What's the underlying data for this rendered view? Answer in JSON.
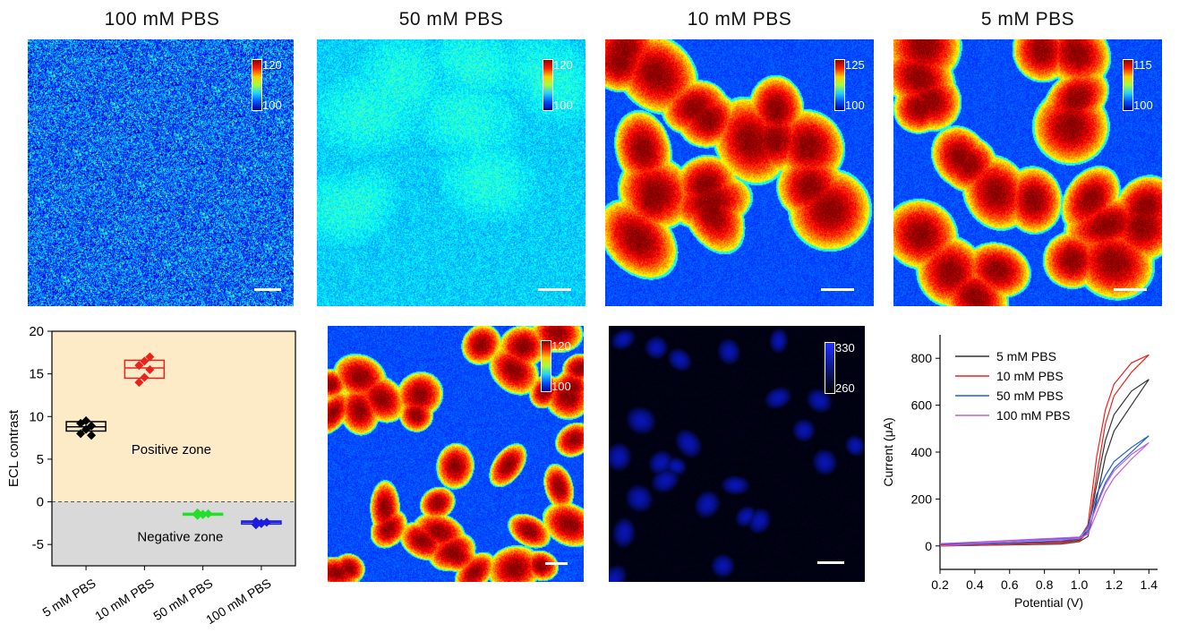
{
  "titles": [
    "100 mM PBS",
    "50 mM PBS",
    "10 mM PBS",
    "5 mM PBS"
  ],
  "colorbars": {
    "p1": {
      "max": "120",
      "min": "100"
    },
    "p2": {
      "max": "120",
      "min": "100"
    },
    "p3": {
      "max": "125",
      "min": "100"
    },
    "p4": {
      "max": "115",
      "min": "100"
    },
    "p5": {
      "max": "120",
      "min": "100"
    },
    "p6": {
      "max": "330",
      "min": "260"
    }
  },
  "colors": {
    "black": "#000000",
    "red": "#e8231e",
    "green": "#22e02a",
    "blue": "#1a1ae0",
    "violet": "#b45ad8",
    "positive_zone": "#fdebc8",
    "negative_zone": "#d9d9d9"
  },
  "chart_data": [
    {
      "type": "box",
      "ylabel": "ECL contrast",
      "ylim": [
        -7.5,
        20
      ],
      "yticks": [
        -5,
        0,
        5,
        10,
        15,
        20
      ],
      "categories": [
        "5 mM PBS",
        "10 mM PBS",
        "50 mM PBS",
        "100 mM PBS"
      ],
      "annotations": [
        "Positive zone",
        "Negative zone"
      ],
      "series": [
        {
          "category": "5 mM PBS",
          "q1": 8.3,
          "median": 8.8,
          "q3": 9.4,
          "points": [
            8.0,
            8.5,
            8.9,
            9.2,
            9.5,
            7.8
          ]
        },
        {
          "category": "10 mM PBS",
          "q1": 14.5,
          "median": 15.7,
          "q3": 16.6,
          "points": [
            14.0,
            14.6,
            15.5,
            16.0,
            16.5,
            17.0
          ]
        },
        {
          "category": "50 mM PBS",
          "q1": -1.55,
          "median": -1.45,
          "q3": -1.35,
          "points": [
            -1.6,
            -1.5,
            -1.4,
            -1.3,
            -1.45
          ]
        },
        {
          "category": "100 mM PBS",
          "q1": -2.6,
          "median": -2.4,
          "q3": -2.25,
          "points": [
            -2.7,
            -2.5,
            -2.4,
            -2.3,
            -2.55
          ]
        }
      ]
    },
    {
      "type": "line",
      "xlabel": "Potential (V)",
      "ylabel": "Current (μA)",
      "xlim": [
        0.2,
        1.45
      ],
      "ylim": [
        -100,
        900
      ],
      "xticks": [
        0.2,
        0.4,
        0.6,
        0.8,
        1.0,
        1.2,
        1.4
      ],
      "yticks": [
        0,
        200,
        400,
        600,
        800
      ],
      "series": [
        {
          "name": "5 mM PBS",
          "color": "#333333",
          "forward": [
            [
              0.2,
              0
            ],
            [
              0.9,
              8
            ],
            [
              1.0,
              18
            ],
            [
              1.05,
              40
            ],
            [
              1.1,
              200
            ],
            [
              1.15,
              380
            ],
            [
              1.2,
              490
            ],
            [
              1.3,
              600
            ],
            [
              1.4,
              710
            ]
          ],
          "reverse": [
            [
              1.4,
              710
            ],
            [
              1.3,
              660
            ],
            [
              1.2,
              560
            ],
            [
              1.15,
              450
            ],
            [
              1.1,
              260
            ],
            [
              1.05,
              70
            ],
            [
              1.0,
              25
            ],
            [
              0.9,
              15
            ],
            [
              0.2,
              5
            ]
          ]
        },
        {
          "name": "10 mM PBS",
          "color": "#e8231e",
          "forward": [
            [
              0.2,
              0
            ],
            [
              0.9,
              10
            ],
            [
              1.0,
              20
            ],
            [
              1.05,
              60
            ],
            [
              1.1,
              300
            ],
            [
              1.15,
              520
            ],
            [
              1.2,
              640
            ],
            [
              1.3,
              740
            ],
            [
              1.4,
              815
            ]
          ],
          "reverse": [
            [
              1.4,
              815
            ],
            [
              1.3,
              780
            ],
            [
              1.2,
              690
            ],
            [
              1.15,
              580
            ],
            [
              1.1,
              380
            ],
            [
              1.05,
              90
            ],
            [
              1.0,
              30
            ],
            [
              0.9,
              18
            ],
            [
              0.2,
              5
            ]
          ]
        },
        {
          "name": "50 mM PBS",
          "color": "#1f5fd6",
          "forward": [
            [
              0.2,
              0
            ],
            [
              0.5,
              10
            ],
            [
              0.9,
              22
            ],
            [
              1.0,
              30
            ],
            [
              1.05,
              60
            ],
            [
              1.1,
              180
            ],
            [
              1.15,
              270
            ],
            [
              1.2,
              330
            ],
            [
              1.3,
              400
            ],
            [
              1.4,
              470
            ]
          ],
          "reverse": [
            [
              1.4,
              470
            ],
            [
              1.3,
              420
            ],
            [
              1.2,
              360
            ],
            [
              1.15,
              300
            ],
            [
              1.1,
              220
            ],
            [
              1.05,
              80
            ],
            [
              1.0,
              35
            ],
            [
              0.5,
              15
            ],
            [
              0.2,
              8
            ]
          ]
        },
        {
          "name": "100 mM PBS",
          "color": "#c060d8",
          "forward": [
            [
              0.2,
              0
            ],
            [
              0.5,
              15
            ],
            [
              0.9,
              28
            ],
            [
              1.0,
              32
            ],
            [
              1.05,
              50
            ],
            [
              1.1,
              140
            ],
            [
              1.15,
              230
            ],
            [
              1.2,
              290
            ],
            [
              1.3,
              370
            ],
            [
              1.4,
              440
            ]
          ],
          "reverse": [
            [
              1.4,
              440
            ],
            [
              1.3,
              390
            ],
            [
              1.2,
              320
            ],
            [
              1.15,
              260
            ],
            [
              1.1,
              170
            ],
            [
              1.05,
              70
            ],
            [
              1.0,
              38
            ],
            [
              0.5,
              20
            ],
            [
              0.2,
              10
            ]
          ]
        }
      ]
    }
  ]
}
